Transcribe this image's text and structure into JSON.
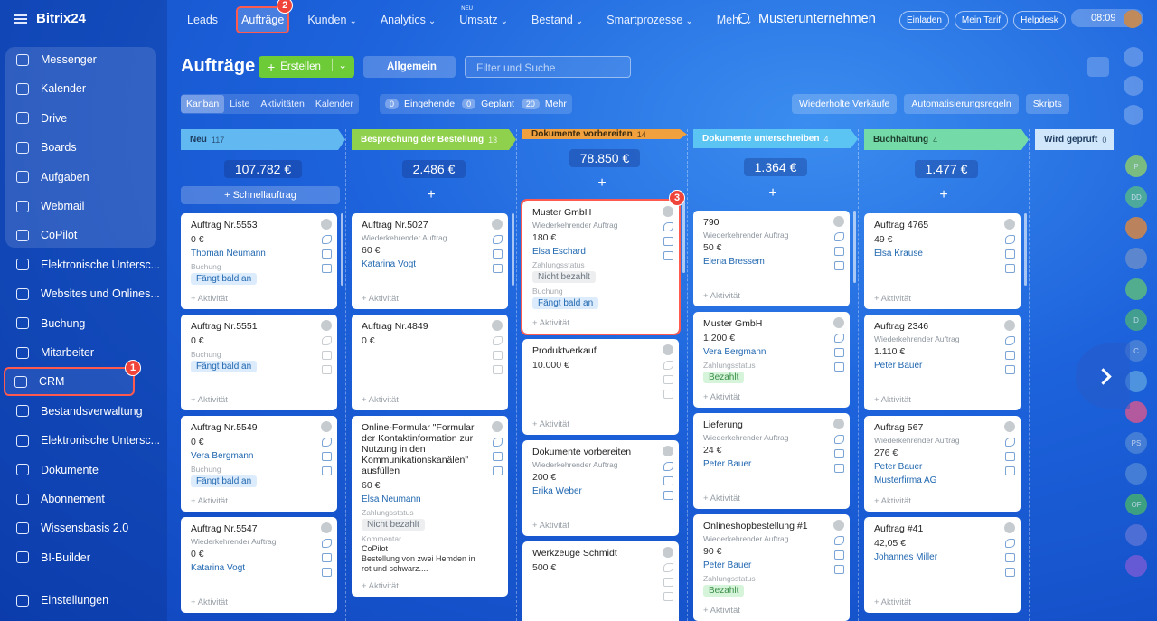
{
  "sidebar": {
    "logo": "Bitrix24",
    "pinned_items": [
      "Messenger",
      "Kalender",
      "Drive",
      "Boards",
      "Aufgaben",
      "Webmail",
      "CoPilot"
    ],
    "items": [
      {
        "label": "Elektronische Untersc..."
      },
      {
        "label": "Websites und Onlines..."
      },
      {
        "label": "Buchung"
      },
      {
        "label": "Mitarbeiter"
      },
      {
        "label": "CRM",
        "callout": "1"
      },
      {
        "label": "Bestandsverwaltung"
      },
      {
        "label": "Elektronische Untersc..."
      },
      {
        "label": "Dokumente"
      },
      {
        "label": "Abonnement"
      },
      {
        "label": "Wissensbasis 2.0"
      },
      {
        "label": "BI-Builder"
      }
    ],
    "settings": "Einstellungen"
  },
  "topbar": {
    "nav": [
      {
        "label": "Leads"
      },
      {
        "label": "Aufträge",
        "callout": "2"
      },
      {
        "label": "Kunden",
        "menu": true
      },
      {
        "label": "Analytics",
        "menu": true
      },
      {
        "label": "Umsatz",
        "menu": true,
        "badge": "NEU"
      },
      {
        "label": "Bestand",
        "menu": true
      },
      {
        "label": "Smartprozesse",
        "menu": true
      },
      {
        "label": "Mehr",
        "menu": true
      }
    ],
    "company": "Musterunternehmen",
    "buttons": [
      "Einladen",
      "Mein Tarif",
      "Helpdesk"
    ],
    "time": "08:09"
  },
  "toolbar": {
    "title": "Aufträge",
    "create": "Erstellen",
    "preset": "Allgemein",
    "search": "Filter und Suche",
    "views": [
      {
        "label": "Kanban",
        "active": true
      },
      {
        "label": "Liste"
      },
      {
        "label": "Aktivitäten"
      },
      {
        "label": "Kalender"
      }
    ],
    "counters": [
      {
        "count": "0",
        "label": "Eingehende"
      },
      {
        "count": "0",
        "label": "Geplant"
      },
      {
        "count": "20",
        "label": "Mehr"
      }
    ],
    "actions": [
      "Wiederholte Verkäufe",
      "Automatisierungsregeln",
      "Skripts"
    ]
  },
  "right_panel": [
    {
      "text": "P",
      "color": "#8fcf6a"
    },
    {
      "text": "DD",
      "color": "#56b98a"
    },
    {
      "color": "#e08a3c"
    },
    {
      "color": "#6b8fc9"
    },
    {
      "color": "#5fbf7a"
    },
    {
      "text": "D",
      "color": "#4cae7d"
    },
    {
      "text": "C",
      "color": "#4f86d6"
    },
    {
      "color": "#5aa0e0"
    },
    {
      "color": "#d9578f"
    },
    {
      "text": "PS",
      "color": "#4f86d6"
    },
    {
      "color": "#4f86d6"
    },
    {
      "text": "OF",
      "color": "#47b36e"
    },
    {
      "color": "#5b74d6"
    },
    {
      "color": "#7b5bd6"
    }
  ],
  "kanban": {
    "activity": "+ Aktivität",
    "columns": [
      {
        "name": "Neu",
        "count": "117",
        "sum": "107.782 €",
        "color": "#62b8f0",
        "text_color": "#1c3b5e",
        "quick": "+ Schnellauftrag",
        "cards": [
          {
            "title": "Auftrag Nr.5553",
            "lines": [
              {
                "style": "amount",
                "text": "0 €"
              },
              {
                "style": "link",
                "text": "Thoman Neumann"
              },
              {
                "style": "label",
                "text": "Buchung"
              },
              {
                "style": "tag-blue",
                "text": "Fängt bald an"
              }
            ]
          },
          {
            "title": "Auftrag Nr.5551",
            "lines": [
              {
                "style": "amount",
                "text": "0 €"
              },
              {
                "style": "label",
                "text": "Buchung"
              },
              {
                "style": "tag-blue",
                "text": "Fängt bald an"
              }
            ]
          },
          {
            "title": "Auftrag Nr.5549",
            "lines": [
              {
                "style": "amount",
                "text": "0 €"
              },
              {
                "style": "link",
                "text": "Vera Bergmann"
              },
              {
                "style": "label",
                "text": "Buchung"
              },
              {
                "style": "tag-blue",
                "text": "Fängt bald an"
              }
            ]
          },
          {
            "title": "Auftrag Nr.5547",
            "lines": [
              {
                "style": "sub",
                "text": "Wiederkehrender Auftrag"
              },
              {
                "style": "amount",
                "text": "0 €"
              },
              {
                "style": "link",
                "text": "Katarina Vogt"
              }
            ]
          }
        ]
      },
      {
        "name": "Besprechung der Bestellung",
        "count": "13",
        "sum": "2.486 €",
        "color": "#8fd04c",
        "text_color": "#ffffff",
        "quick": "+",
        "cards": [
          {
            "title": "Auftrag Nr.5027",
            "lines": [
              {
                "style": "sub",
                "text": "Wiederkehrender Auftrag"
              },
              {
                "style": "amount",
                "text": "60 €"
              },
              {
                "style": "link",
                "text": "Katarina Vogt"
              }
            ]
          },
          {
            "title": "Auftrag Nr.4849",
            "lines": [
              {
                "style": "amount",
                "text": "0 €"
              }
            ]
          },
          {
            "title": "Online-Formular \"Formular der Kontaktinformation zur Nutzung in den Kommunikationskanälen\" ausfüllen",
            "lines": [
              {
                "style": "amount",
                "text": "60 €"
              },
              {
                "style": "link",
                "text": "Elsa Neumann"
              },
              {
                "style": "label",
                "text": "Zahlungsstatus"
              },
              {
                "style": "tag-gray",
                "text": "Nicht bezahlt"
              },
              {
                "style": "label",
                "text": "Kommentar"
              },
              {
                "style": "text",
                "text": "CoPilot"
              },
              {
                "style": "text",
                "text": "Bestellung von zwei Hemden in rot und schwarz...."
              }
            ]
          }
        ]
      },
      {
        "name": "Dokumente vorbereiten",
        "count": "14",
        "sum": "78.850 €",
        "color": "#f0a03c",
        "text_color": "#3a2a10",
        "quick": "+",
        "cards": [
          {
            "title": "Muster GmbH",
            "callout": "3",
            "lines": [
              {
                "style": "sub",
                "text": "Wiederkehrender Auftrag"
              },
              {
                "style": "amount",
                "text": "180 €"
              },
              {
                "style": "link",
                "text": "Elsa Eschard"
              },
              {
                "style": "label",
                "text": "Zahlungsstatus"
              },
              {
                "style": "tag-gray",
                "text": "Nicht bezahlt"
              },
              {
                "style": "label",
                "text": "Buchung"
              },
              {
                "style": "tag-blue",
                "text": "Fängt bald an"
              }
            ]
          },
          {
            "title": "Produktverkauf",
            "lines": [
              {
                "style": "amount",
                "text": "10.000 €"
              }
            ]
          },
          {
            "title": "Dokumente vorbereiten",
            "lines": [
              {
                "style": "sub",
                "text": "Wiederkehrender Auftrag"
              },
              {
                "style": "amount",
                "text": "200 €"
              },
              {
                "style": "link",
                "text": "Erika Weber"
              }
            ]
          },
          {
            "title": "Werkzeuge Schmidt",
            "lines": [
              {
                "style": "amount",
                "text": "500 €"
              }
            ]
          }
        ]
      },
      {
        "name": "Dokumente unterschreiben",
        "count": "4",
        "sum": "1.364 €",
        "color": "#5cc4f2",
        "text_color": "#ffffff",
        "quick": "+",
        "cards": [
          {
            "title": "790",
            "lines": [
              {
                "style": "sub",
                "text": "Wiederkehrender Auftrag"
              },
              {
                "style": "amount",
                "text": "50 €"
              },
              {
                "style": "link",
                "text": "Elena Bressem"
              }
            ]
          },
          {
            "title": "Muster GmbH",
            "lines": [
              {
                "style": "amount",
                "text": "1.200 €"
              },
              {
                "style": "link",
                "text": "Vera Bergmann"
              },
              {
                "style": "label",
                "text": "Zahlungsstatus"
              },
              {
                "style": "tag-green",
                "text": "Bezahlt"
              }
            ]
          },
          {
            "title": "Lieferung",
            "lines": [
              {
                "style": "sub",
                "text": "Wiederkehrender Auftrag"
              },
              {
                "style": "amount",
                "text": "24 €"
              },
              {
                "style": "link",
                "text": "Peter Bauer"
              }
            ]
          },
          {
            "title": "Onlineshopbestellung #1",
            "lines": [
              {
                "style": "sub",
                "text": "Wiederkehrender Auftrag"
              },
              {
                "style": "amount",
                "text": "90 €"
              },
              {
                "style": "link",
                "text": "Peter Bauer"
              },
              {
                "style": "label",
                "text": "Zahlungsstatus"
              },
              {
                "style": "tag-green",
                "text": "Bezahlt"
              }
            ]
          }
        ]
      },
      {
        "name": "Buchhaltung",
        "count": "4",
        "sum": "1.477 €",
        "color": "#74dba8",
        "text_color": "#1d3d2e",
        "quick": "+",
        "cards": [
          {
            "title": "Auftrag 4765",
            "lines": [
              {
                "style": "amount",
                "text": "49 €"
              },
              {
                "style": "link",
                "text": "Elsa Krause"
              }
            ]
          },
          {
            "title": "Auftrag 2346",
            "lines": [
              {
                "style": "sub",
                "text": "Wiederkehrender Auftrag"
              },
              {
                "style": "amount",
                "text": "1.110 €"
              },
              {
                "style": "link",
                "text": "Peter Bauer"
              }
            ]
          },
          {
            "title": "Auftrag 567",
            "lines": [
              {
                "style": "sub",
                "text": "Wiederkehrender Auftrag"
              },
              {
                "style": "amount",
                "text": "276 €"
              },
              {
                "style": "link",
                "text": "Peter Bauer"
              },
              {
                "style": "link",
                "text": "Musterfirma AG"
              }
            ]
          },
          {
            "title": "Auftrag #41",
            "lines": [
              {
                "style": "amount",
                "text": "42,05 €"
              },
              {
                "style": "link",
                "text": "Johannes Miller"
              }
            ]
          }
        ]
      },
      {
        "name": "Wird geprüft",
        "count": "0",
        "color": "#cfe6fb",
        "text_color": "#1c3b5e",
        "cards": []
      }
    ]
  }
}
